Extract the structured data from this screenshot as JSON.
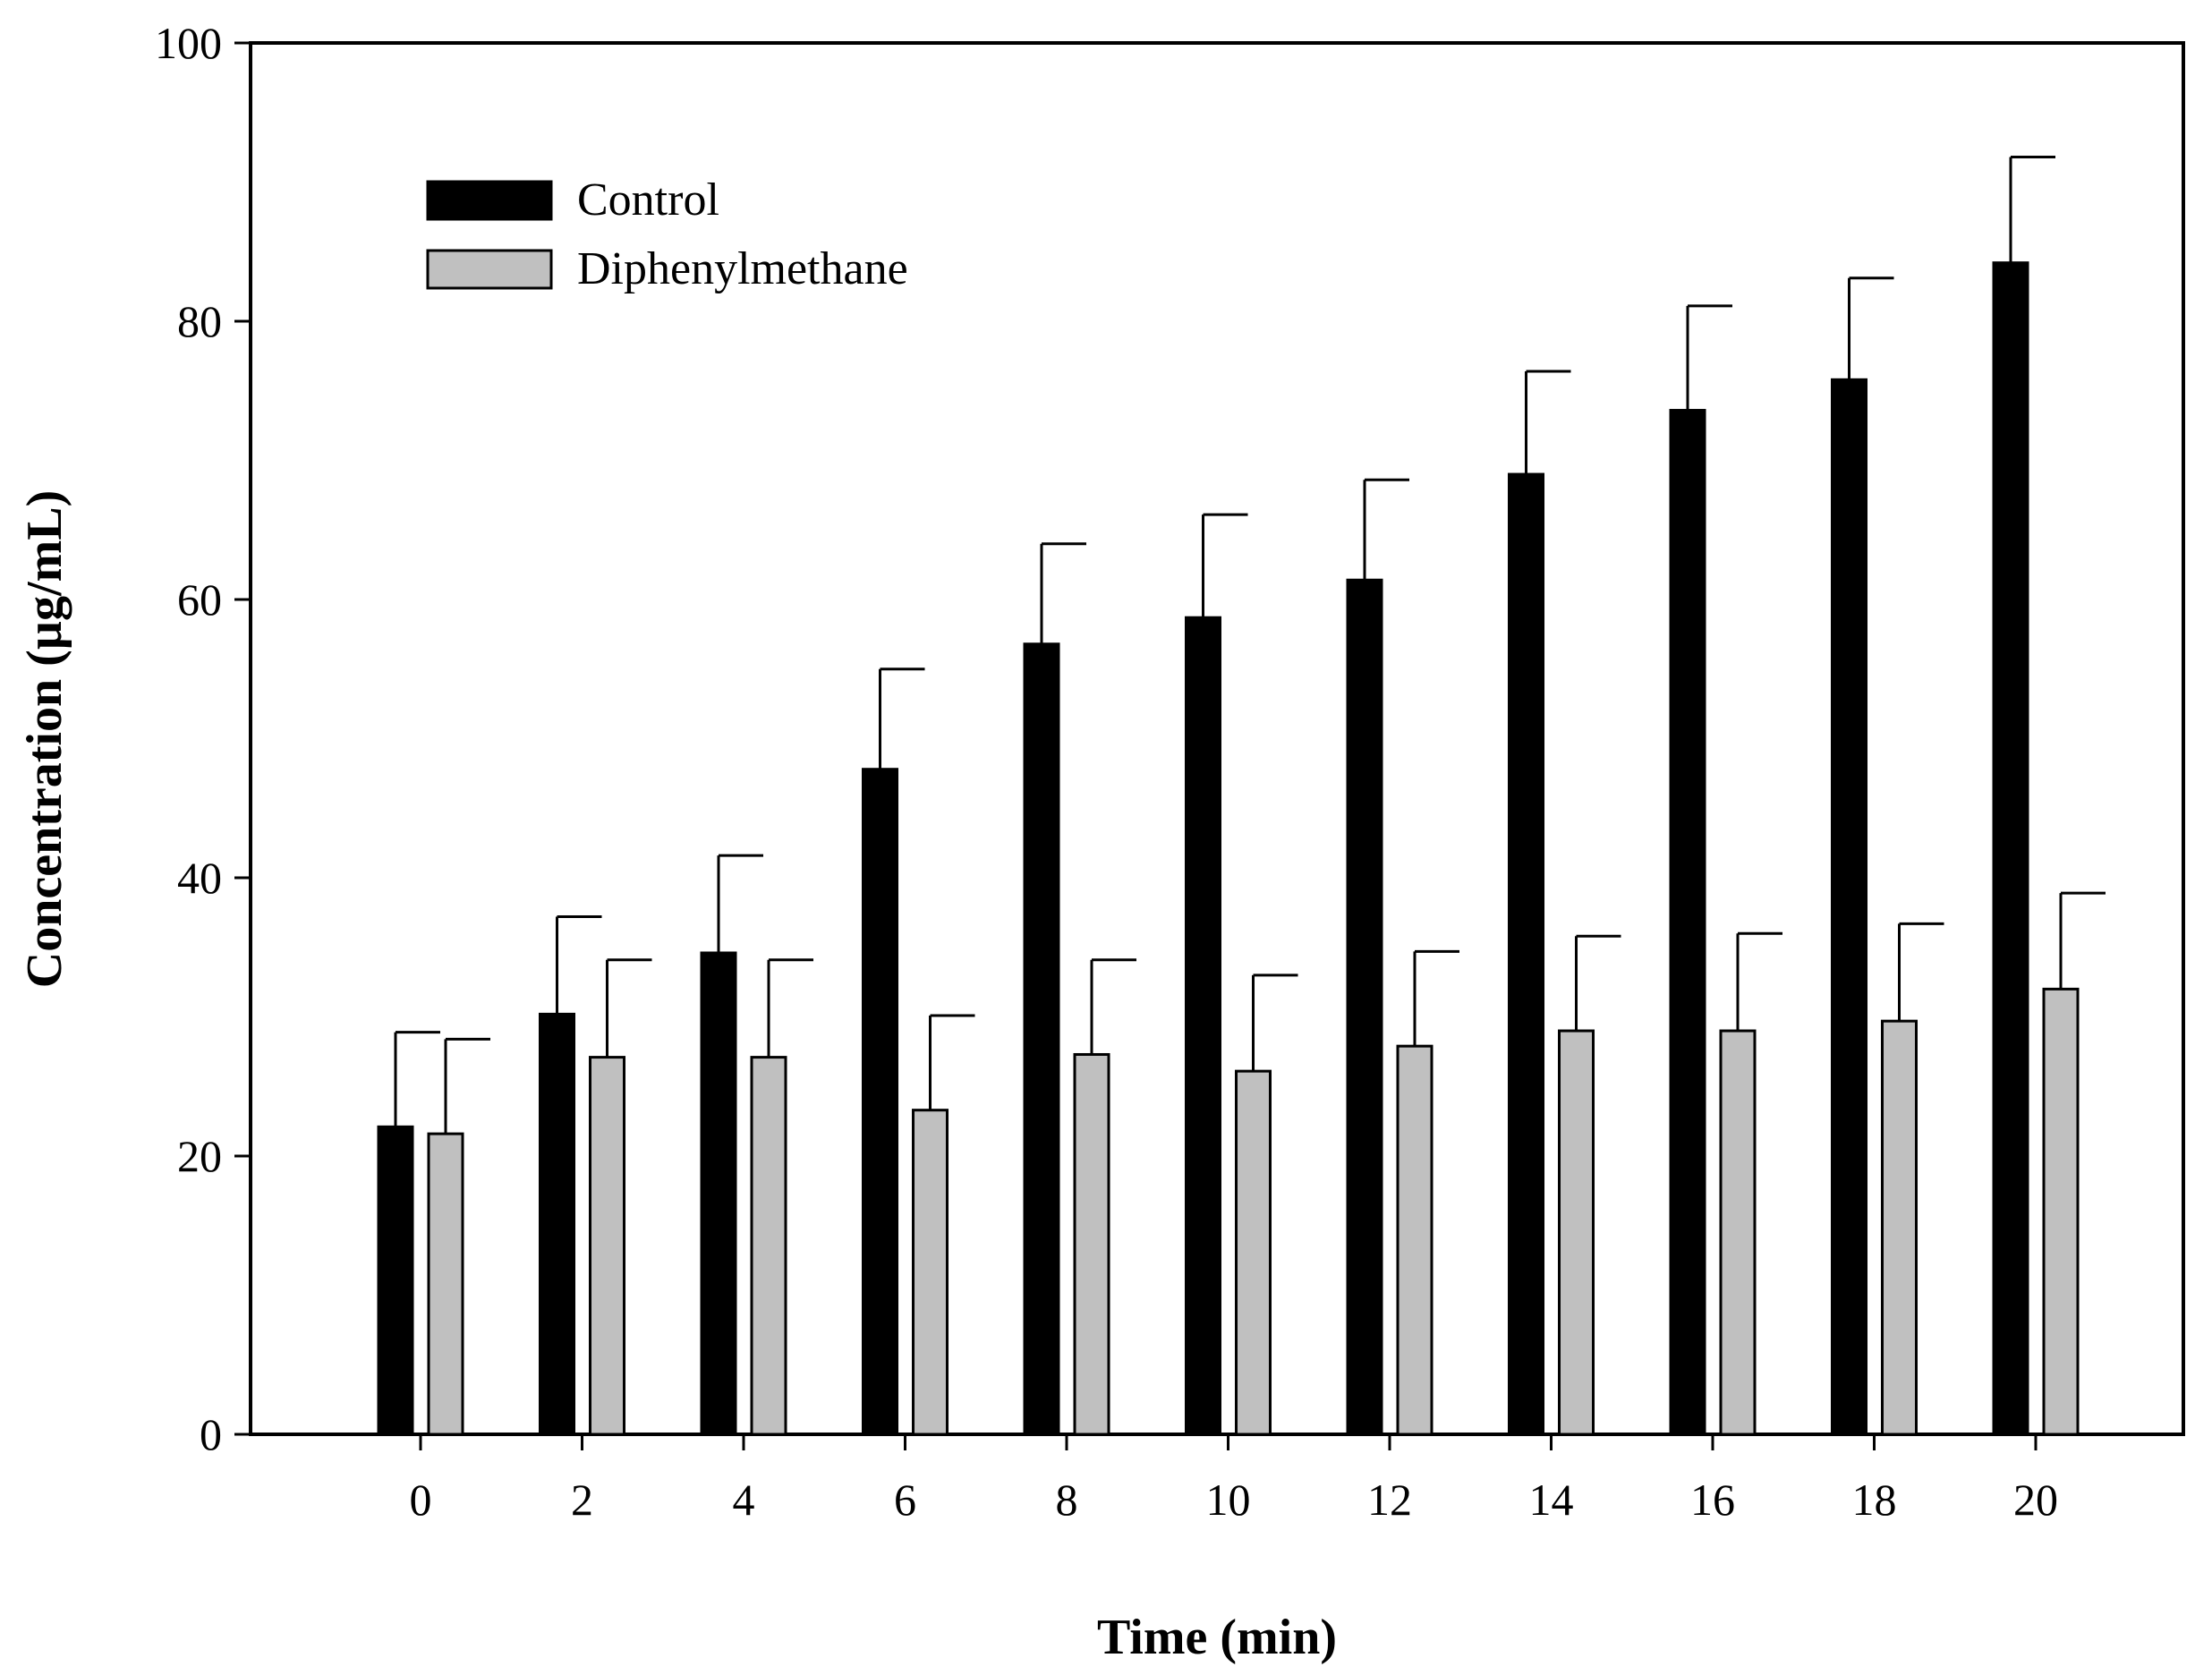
{
  "chart_data": {
    "type": "bar",
    "title": "",
    "xlabel": "Time (min)",
    "ylabel": "Concentration (µg/mL)",
    "ylim": [
      0,
      100
    ],
    "yticks": [
      0,
      20,
      40,
      60,
      80,
      100
    ],
    "categories": [
      "0",
      "2",
      "4",
      "6",
      "8",
      "10",
      "12",
      "14",
      "16",
      "18",
      "20"
    ],
    "legend_position": "top-left",
    "series": [
      {
        "name": "Control",
        "color": "#000000",
        "values": [
          22.1,
          30.2,
          34.6,
          47.8,
          56.8,
          58.7,
          61.4,
          69.0,
          73.6,
          75.8,
          84.2
        ],
        "errors": [
          6.8,
          7.0,
          7.0,
          7.2,
          7.2,
          7.4,
          7.2,
          7.4,
          7.5,
          7.3,
          7.6
        ]
      },
      {
        "name": "Diphenylmethane",
        "color": "#c0c0c0",
        "values": [
          21.6,
          27.1,
          27.1,
          23.3,
          27.3,
          26.1,
          27.9,
          29.0,
          29.0,
          29.7,
          32.0
        ],
        "errors": [
          6.8,
          7.0,
          7.0,
          6.8,
          6.8,
          6.9,
          6.8,
          6.8,
          7.0,
          7.0,
          6.9
        ]
      }
    ]
  }
}
